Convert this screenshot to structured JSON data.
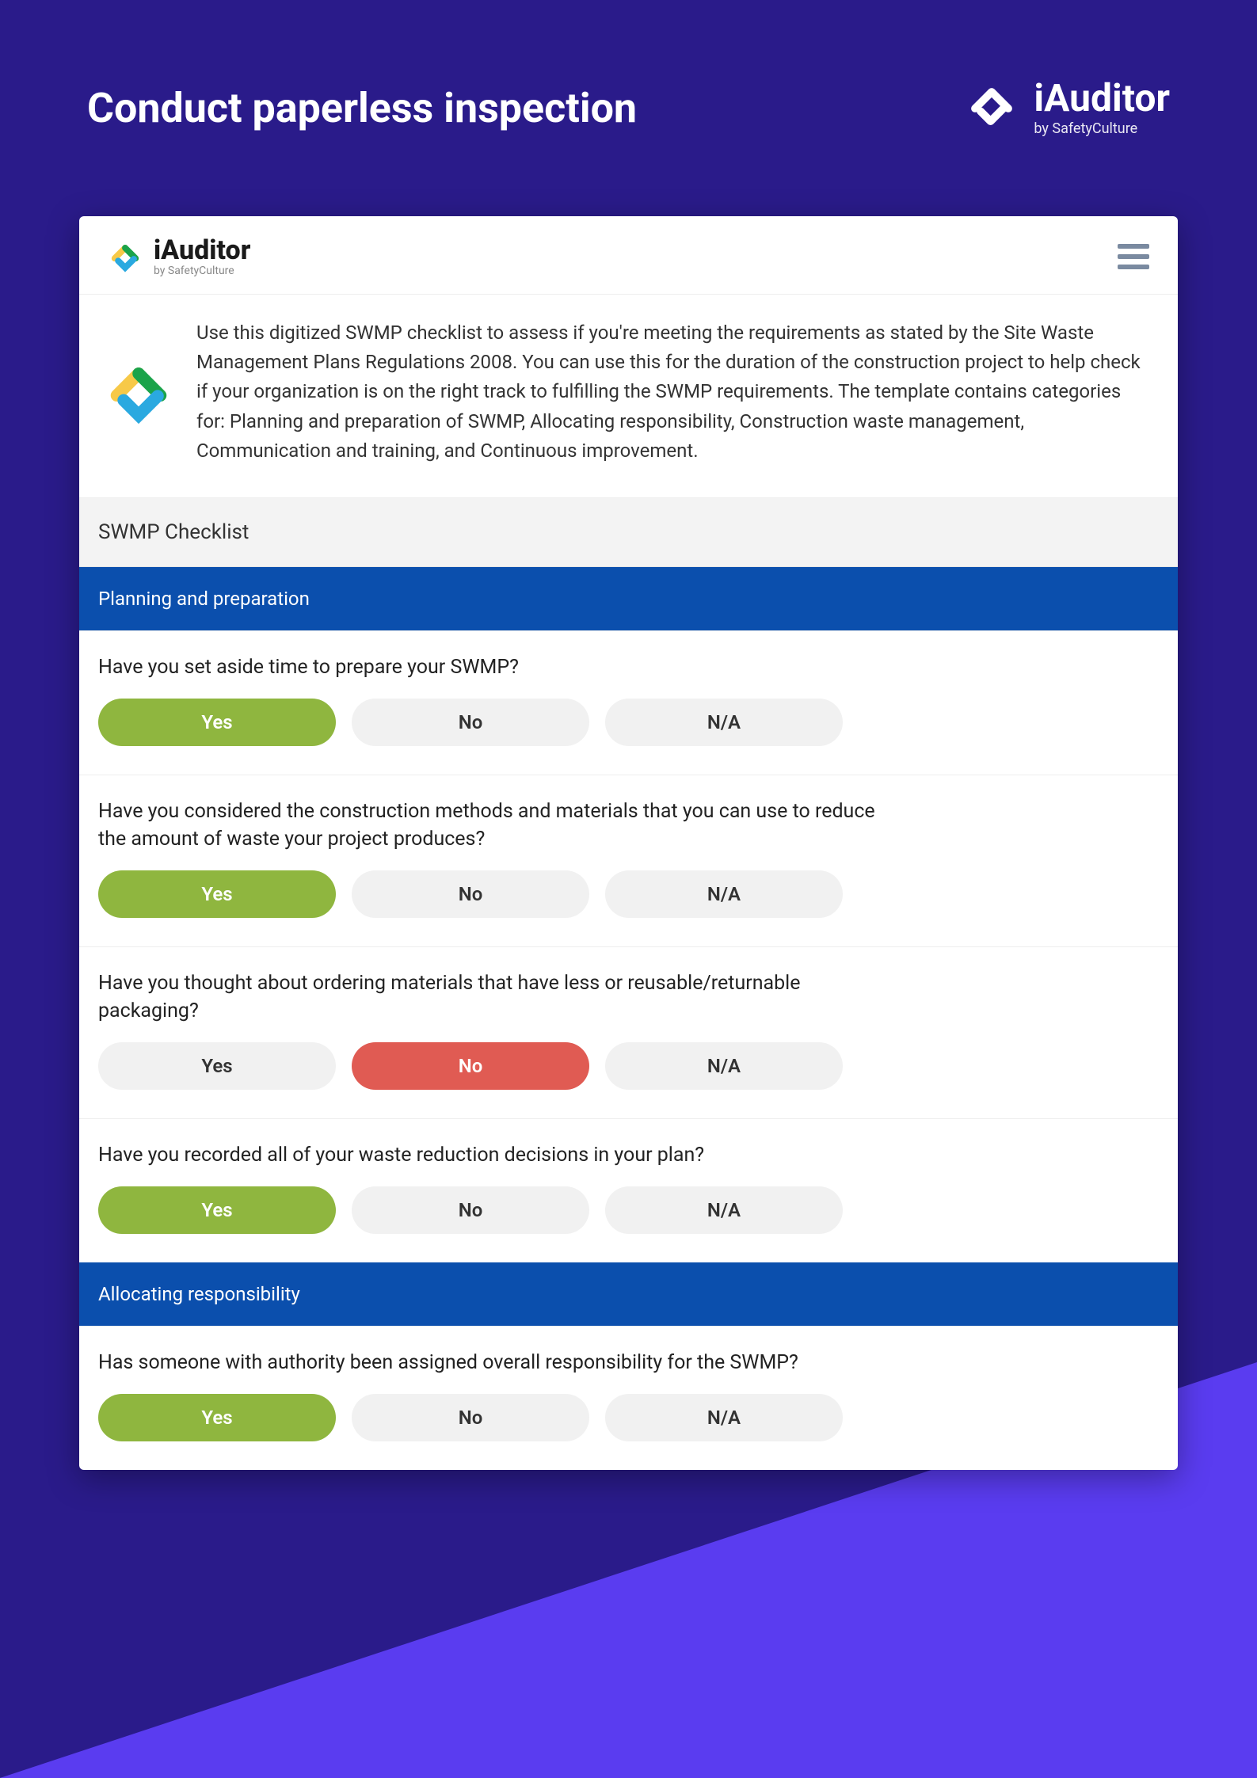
{
  "colors": {
    "page_bg": "#2a1b8a",
    "accent_cyan": "#00c2ff",
    "accent_purple": "#5a3cf0",
    "category_bg": "#0b4fad",
    "yes_selected": "#8fb63f",
    "no_selected": "#e05b53",
    "pill_default_bg": "#f1f1f1",
    "section_bg": "#f3f3f3",
    "text_body": "#333333",
    "brand_icon_yellow": "#f7c948",
    "brand_icon_green": "#1aa34a",
    "brand_icon_blue": "#2aa9e0"
  },
  "typography": {
    "header_title_fontsize": 52,
    "brand_main_fontsize": 48,
    "brand_sub_fontsize": 18,
    "app_brand_main_fontsize": 34,
    "intro_fontsize": 24,
    "section_title_fontsize": 26,
    "category_fontsize": 24,
    "question_fontsize": 25,
    "answer_fontsize": 24
  },
  "header": {
    "title": "Conduct paperless inspection",
    "brand_name": "iAuditor",
    "brand_sub": "by SafetyCulture"
  },
  "app": {
    "brand_name": "iAuditor",
    "brand_sub": "by SafetyCulture",
    "intro": "Use this digitized SWMP checklist to assess if you're meeting the requirements as stated by the Site Waste Management Plans Regulations 2008. You can use this for the duration of the construction project to help check if your organization is on the right track to fulfilling the SWMP requirements. The template contains categories for: Planning and preparation of SWMP, Allocating responsibility, Construction waste management, Communication and training, and Continuous improvement."
  },
  "checklist": {
    "title": "SWMP Checklist",
    "answer_labels": {
      "yes": "Yes",
      "no": "No",
      "na": "N/A"
    },
    "categories": [
      {
        "name": "Planning and preparation",
        "questions": [
          {
            "text": "Have you set aside time to prepare your SWMP?",
            "selected": "yes"
          },
          {
            "text": "Have you considered the construction methods and materials that you can use to reduce the amount of waste your project produces?",
            "selected": "yes"
          },
          {
            "text": "Have you thought about ordering materials that have less or reusable/returnable packaging?",
            "selected": "no"
          },
          {
            "text": "Have you recorded all of your waste reduction decisions in your plan?",
            "selected": "yes"
          }
        ]
      },
      {
        "name": "Allocating responsibility",
        "questions": [
          {
            "text": "Has someone with authority been assigned overall responsibility for the SWMP?",
            "selected": "yes"
          }
        ]
      }
    ]
  }
}
